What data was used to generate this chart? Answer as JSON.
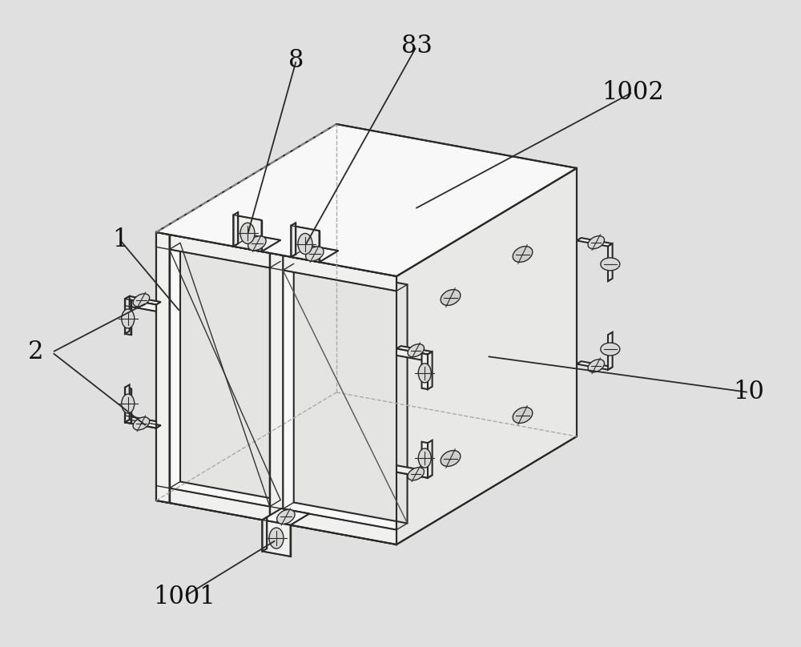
{
  "bg_color": "#e0e0e0",
  "line_color": "#2a2a2a",
  "face_white": "#f8f8f8",
  "face_light": "#f0f0ee",
  "face_mid": "#e8e8e6",
  "face_dark": "#d8d8d6",
  "face_inner": "#e4e4e2",
  "font_size": 22,
  "labels": [
    "1",
    "2",
    "8",
    "83",
    "10",
    "1001",
    "1002"
  ]
}
